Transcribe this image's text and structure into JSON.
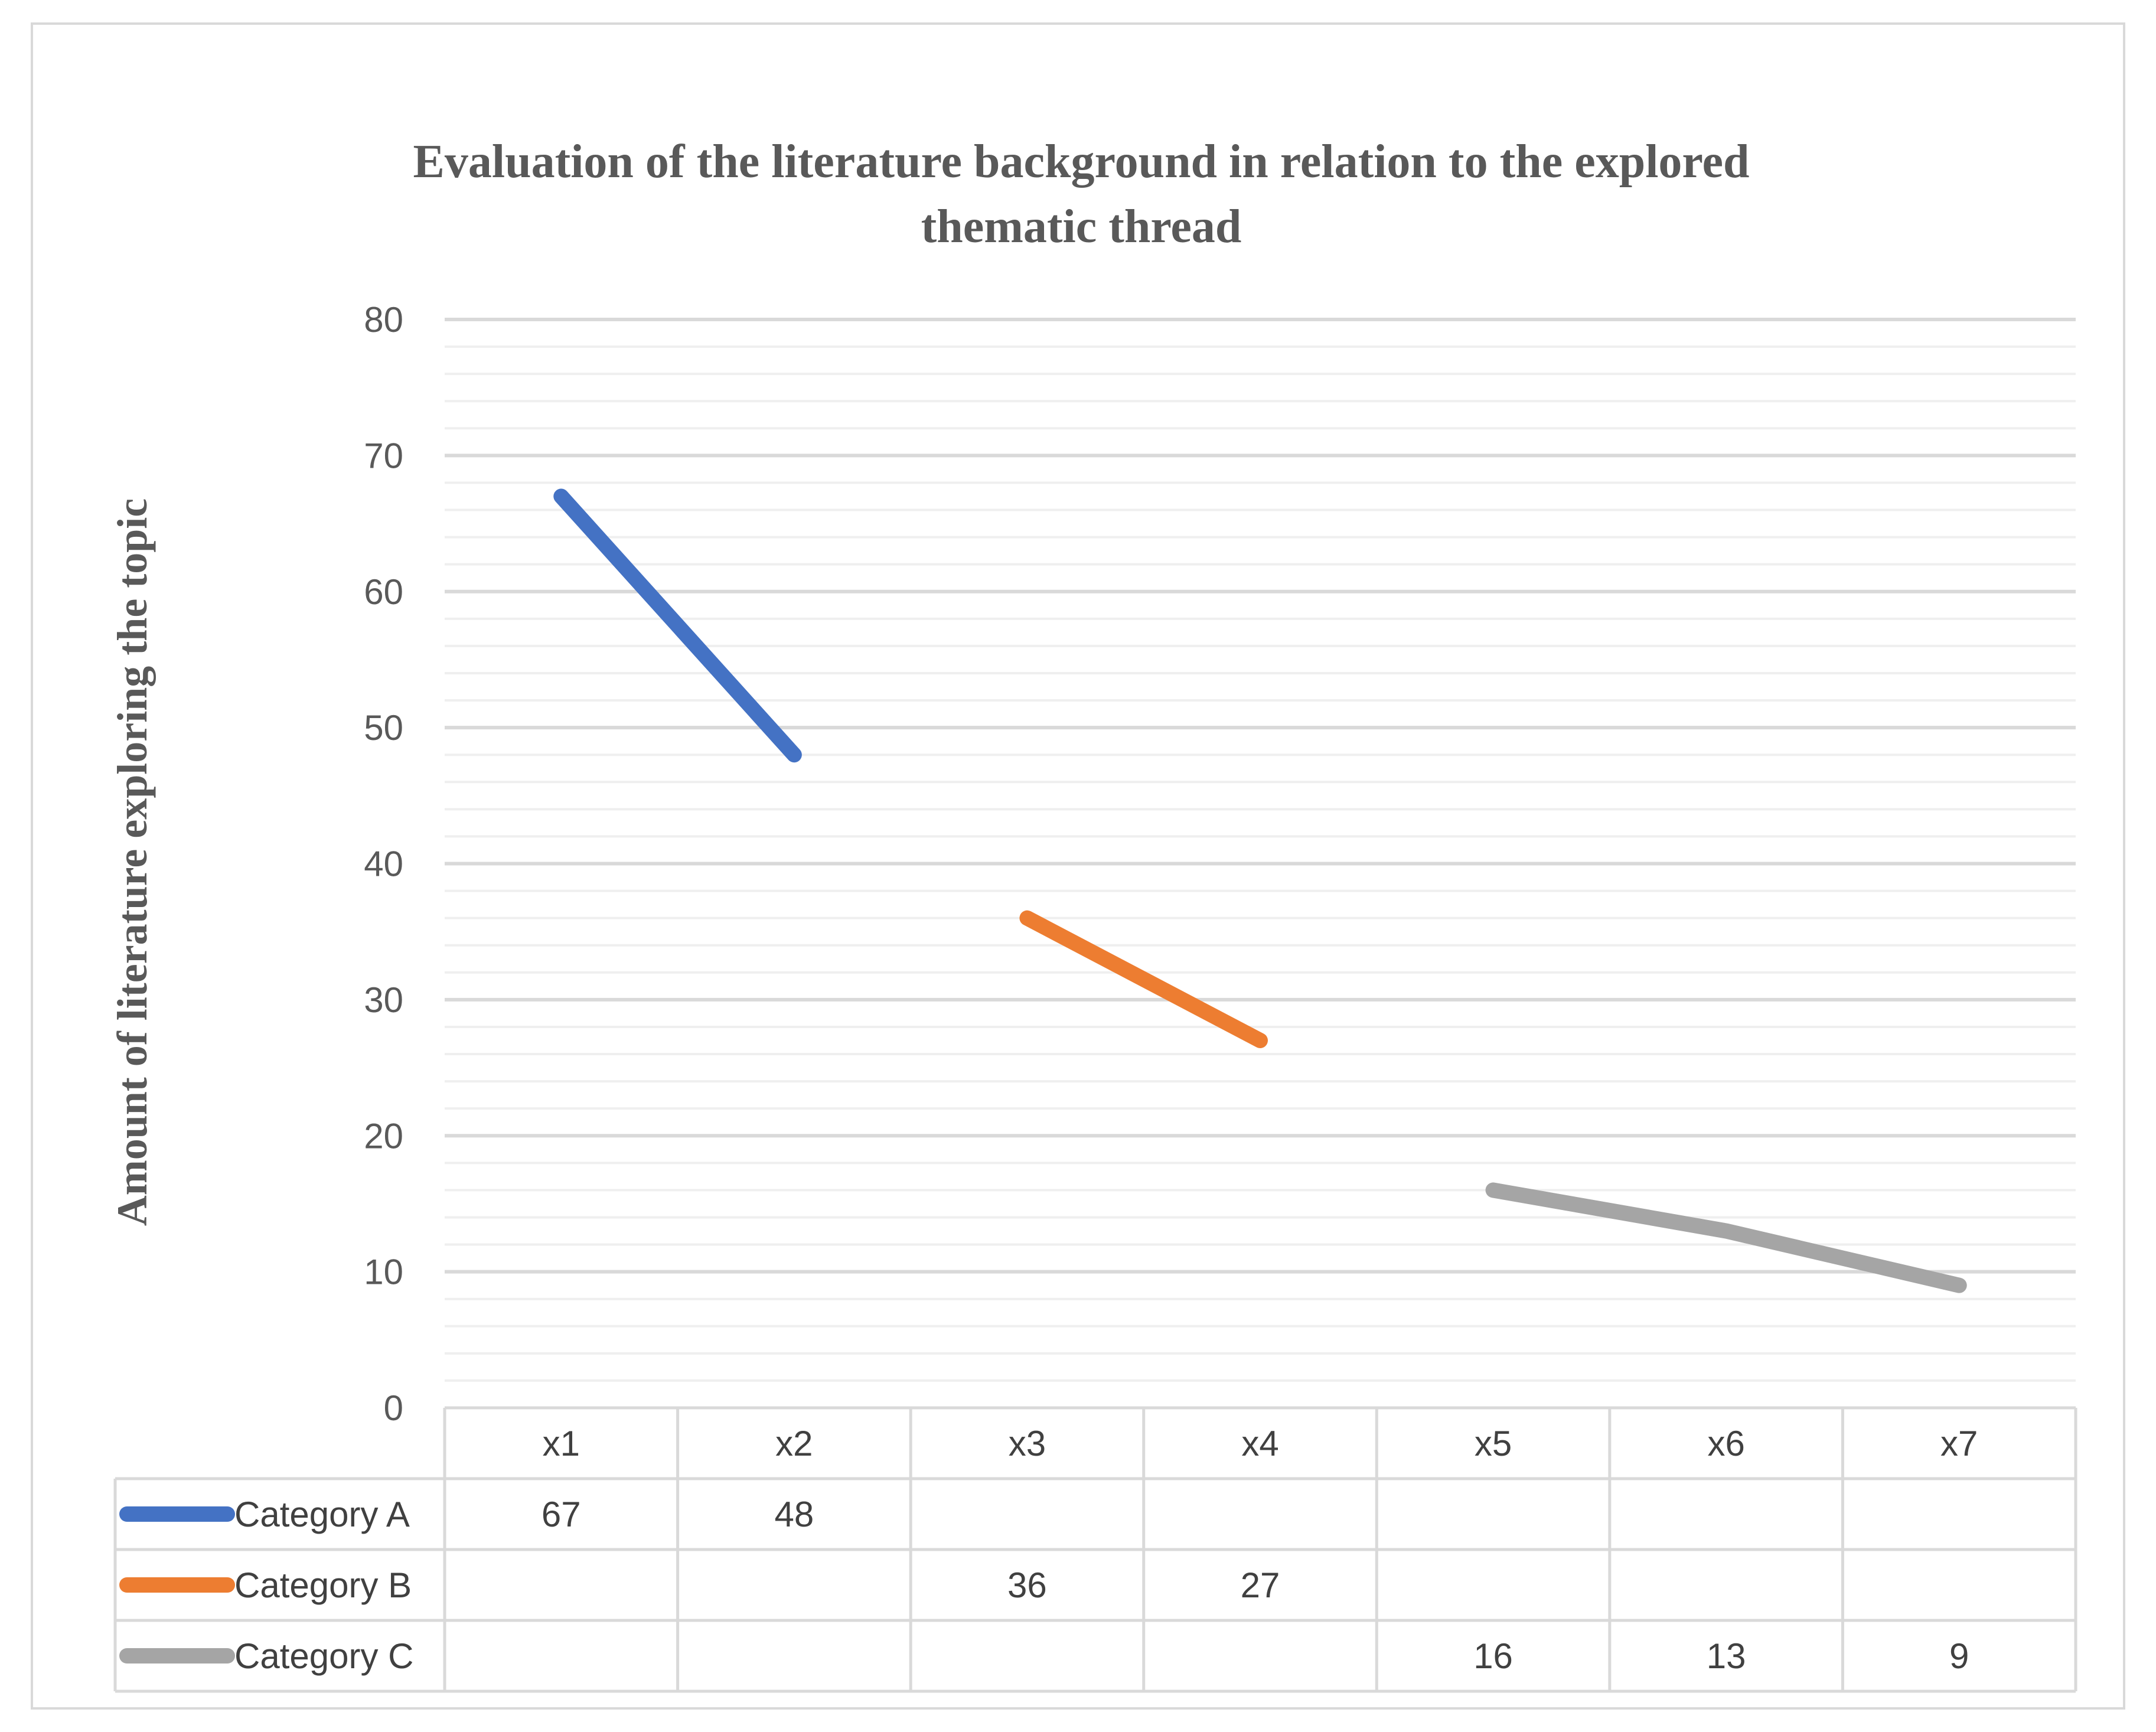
{
  "chart_data": {
    "type": "line",
    "title_line1": "Evaluation of the literature background in relation to the explored",
    "title_line2": "thematic thread",
    "xlabel": "",
    "ylabel": "Amount of literature exploring the topic",
    "ylim": [
      0,
      80
    ],
    "y_ticks": [
      "0",
      "10",
      "20",
      "30",
      "40",
      "50",
      "60",
      "70",
      "80"
    ],
    "y_major_step": 10,
    "y_minor_step": 2,
    "categories": [
      "x1",
      "x2",
      "x3",
      "x4",
      "x5",
      "x6",
      "x7"
    ],
    "legend_placement": "data-table-left",
    "grid": true,
    "series": [
      {
        "name": "Category A",
        "color": "#4472c4",
        "values": [
          67,
          48,
          null,
          null,
          null,
          null,
          null
        ]
      },
      {
        "name": "Category B",
        "color": "#ed7d31",
        "values": [
          null,
          null,
          36,
          27,
          null,
          null,
          null
        ]
      },
      {
        "name": "Category C",
        "color": "#a5a5a5",
        "values": [
          null,
          null,
          null,
          null,
          16,
          13,
          9
        ]
      }
    ]
  }
}
